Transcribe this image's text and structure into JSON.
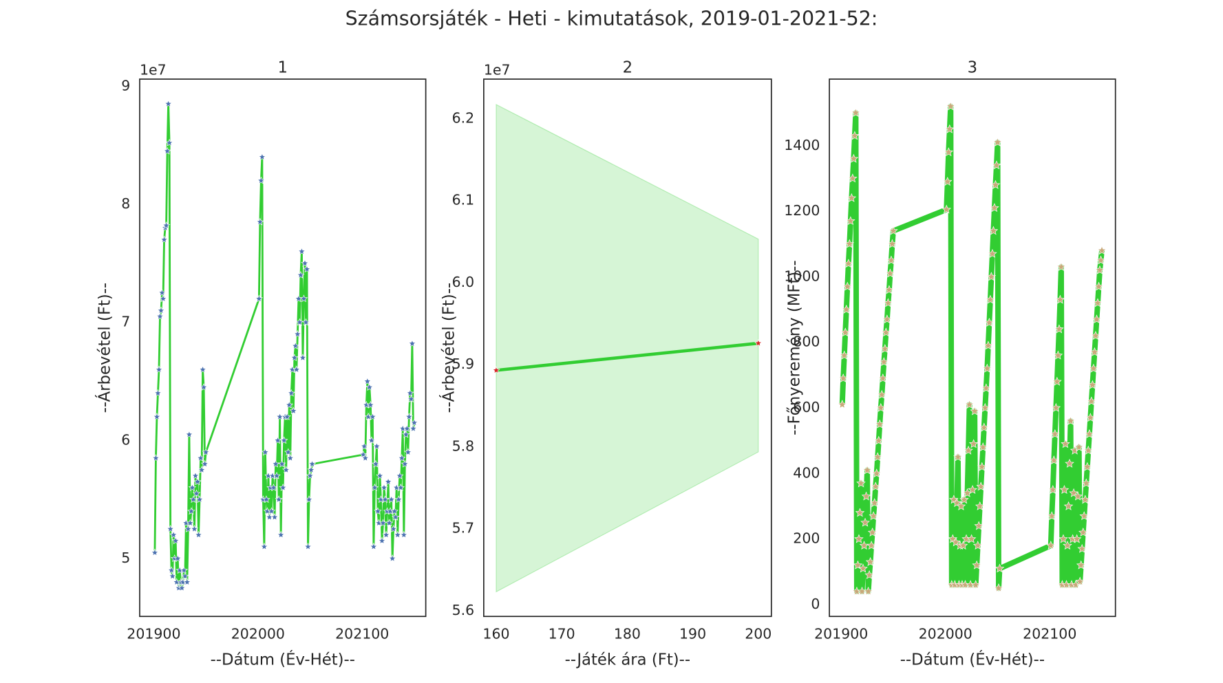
{
  "title": "Számsorsjáték - Heti - kimutatások, 2019-01-2021-52:",
  "chart_data": [
    {
      "type": "line",
      "title": "1",
      "xlabel": "--Dátum (Év-Hét)--",
      "ylabel": "--Árbevétel (Ft)--",
      "y_offset_label": "1e7",
      "line_color": "#32cd32",
      "marker_color": "#4c72b0",
      "xlim": [
        201886.5,
        202161
      ],
      "ylim": [
        45100000,
        90600000
      ],
      "xticks": [
        201900,
        202000,
        202100
      ],
      "yticks": [
        {
          "value": 50000000,
          "label": "5"
        },
        {
          "value": 60000000,
          "label": "6"
        },
        {
          "value": 70000000,
          "label": "7"
        },
        {
          "value": 80000000,
          "label": "8"
        },
        {
          "value": 90000000,
          "label": "9"
        }
      ],
      "x": [
        201901,
        201902,
        201903,
        201904,
        201905,
        201906,
        201907,
        201908,
        201909,
        201910,
        201911,
        201912,
        201913,
        201914,
        201915,
        201916,
        201917,
        201918,
        201919,
        201920,
        201921,
        201922,
        201923,
        201924,
        201925,
        201926,
        201927,
        201928,
        201929,
        201930,
        201931,
        201932,
        201933,
        201934,
        201935,
        201936,
        201937,
        201938,
        201939,
        201940,
        201941,
        201942,
        201943,
        201944,
        201945,
        201946,
        201947,
        201948,
        201949,
        201950,
        202001,
        202002,
        202003,
        202004,
        202005,
        202006,
        202007,
        202008,
        202009,
        202010,
        202011,
        202012,
        202013,
        202014,
        202015,
        202016,
        202017,
        202018,
        202019,
        202020,
        202021,
        202022,
        202023,
        202024,
        202025,
        202026,
        202027,
        202028,
        202029,
        202030,
        202031,
        202032,
        202033,
        202034,
        202035,
        202036,
        202037,
        202038,
        202039,
        202040,
        202041,
        202042,
        202043,
        202044,
        202045,
        202046,
        202047,
        202048,
        202049,
        202050,
        202051,
        202052,
        202101,
        202102,
        202103,
        202104,
        202105,
        202106,
        202107,
        202108,
        202109,
        202110,
        202111,
        202112,
        202113,
        202114,
        202115,
        202116,
        202117,
        202118,
        202119,
        202120,
        202121,
        202122,
        202123,
        202124,
        202125,
        202126,
        202127,
        202128,
        202129,
        202130,
        202131,
        202132,
        202133,
        202134,
        202135,
        202136,
        202137,
        202138,
        202139,
        202140,
        202141,
        202142,
        202143,
        202144,
        202145,
        202146,
        202147,
        202148,
        202149,
        202150
      ],
      "values": [
        50500000,
        58500000,
        62000000,
        64000000,
        66000000,
        70500000,
        71000000,
        72500000,
        72000000,
        77000000,
        78000000,
        78200000,
        84500000,
        88500000,
        85200000,
        52500000,
        49000000,
        48500000,
        52000000,
        50000000,
        51500000,
        48000000,
        50000000,
        47500000,
        49000000,
        48000000,
        47500000,
        48000000,
        49000000,
        48500000,
        53000000,
        48000000,
        52500000,
        60500000,
        53000000,
        54000000,
        56000000,
        55000000,
        52500000,
        57000000,
        55500000,
        56500000,
        52000000,
        55000000,
        58500000,
        57500000,
        66000000,
        64500000,
        58000000,
        59000000,
        72000000,
        78500000,
        82000000,
        84000000,
        55000000,
        51000000,
        59000000,
        55000000,
        54000000,
        57000000,
        53500000,
        56000000,
        54000000,
        57000000,
        56000000,
        53500000,
        58000000,
        57000000,
        60000000,
        55000000,
        62000000,
        52000000,
        58000000,
        56000000,
        60000000,
        62000000,
        57500000,
        62000000,
        59000000,
        63000000,
        58500000,
        64000000,
        66000000,
        62500000,
        67000000,
        68000000,
        66000000,
        69000000,
        72000000,
        70000000,
        74000000,
        76000000,
        67000000,
        72000000,
        75000000,
        70000000,
        74500000,
        51000000,
        55000000,
        57000000,
        57500000,
        58000000,
        58800000,
        59500000,
        58500000,
        63000000,
        65000000,
        62000000,
        64500000,
        63000000,
        60000000,
        62000000,
        51000000,
        56000000,
        58000000,
        59500000,
        54000000,
        53000000,
        57000000,
        55000000,
        51500000,
        53000000,
        56000000,
        55000000,
        52000000,
        54000000,
        56500000,
        53000000,
        54000000,
        55000000,
        50000000,
        52500000,
        54000000,
        53500000,
        56000000,
        52000000,
        55000000,
        57000000,
        56000000,
        58500000,
        61000000,
        52000000,
        58000000,
        60500000,
        61000000,
        59000000,
        62000000,
        64000000,
        63500000,
        68200000,
        61000000,
        61500000
      ]
    },
    {
      "type": "line",
      "title": "2",
      "xlabel": "--Játék ára (Ft)--",
      "ylabel": "--Árbevétel (Ft)--",
      "y_offset_label": "1e7",
      "line_color": "#32cd32",
      "marker_color": "#d62728",
      "band_color": "#32cd32",
      "xlim": [
        158.1,
        202
      ],
      "ylim": [
        55930000,
        62480000
      ],
      "xticks": [
        160,
        170,
        180,
        190,
        200
      ],
      "yticks": [
        {
          "value": 56000000,
          "label": "5.6"
        },
        {
          "value": 57000000,
          "label": "5.7"
        },
        {
          "value": 58000000,
          "label": "5.8"
        },
        {
          "value": 59000000,
          "label": "5.9"
        },
        {
          "value": 60000000,
          "label": "6.0"
        },
        {
          "value": 61000000,
          "label": "6.1"
        },
        {
          "value": 62000000,
          "label": "6.2"
        }
      ],
      "x": [
        160,
        200
      ],
      "values": [
        58930000,
        59260000
      ],
      "band_lower": [
        56230000,
        57935000
      ],
      "band_upper": [
        62170000,
        60530000
      ]
    },
    {
      "type": "line",
      "title": "3",
      "xlabel": "--Dátum (Év-Hét)--",
      "ylabel": "--Főnyeremény (MFt)--",
      "line_color": "#32cd32",
      "marker_color": "#c8a97a",
      "xlim": [
        201888.7,
        202163
      ],
      "ylim": [
        -36,
        1603
      ],
      "xticks": [
        201900,
        202000,
        202100
      ],
      "yticks": [
        0,
        200,
        400,
        600,
        800,
        1000,
        1200,
        1400
      ],
      "x": [
        201901,
        201902,
        201903,
        201904,
        201905,
        201906,
        201907,
        201908,
        201909,
        201910,
        201911,
        201912,
        201913,
        201914,
        201915,
        201916,
        201917,
        201918,
        201919,
        201920,
        201921,
        201922,
        201923,
        201924,
        201925,
        201926,
        201927,
        201928,
        201929,
        201930,
        201931,
        201932,
        201933,
        201934,
        201935,
        201936,
        201937,
        201938,
        201939,
        201940,
        201941,
        201942,
        201943,
        201944,
        201945,
        201946,
        201947,
        201948,
        201949,
        201950,
        202001,
        202002,
        202003,
        202004,
        202005,
        202006,
        202007,
        202008,
        202009,
        202010,
        202011,
        202012,
        202013,
        202014,
        202015,
        202016,
        202017,
        202018,
        202019,
        202020,
        202021,
        202022,
        202023,
        202024,
        202025,
        202026,
        202027,
        202028,
        202029,
        202030,
        202031,
        202032,
        202033,
        202034,
        202035,
        202036,
        202037,
        202038,
        202039,
        202040,
        202041,
        202042,
        202043,
        202044,
        202045,
        202046,
        202047,
        202048,
        202049,
        202050,
        202051,
        202052,
        202101,
        202102,
        202103,
        202104,
        202105,
        202106,
        202107,
        202108,
        202109,
        202110,
        202111,
        202112,
        202113,
        202114,
        202115,
        202116,
        202117,
        202118,
        202119,
        202120,
        202121,
        202122,
        202123,
        202124,
        202125,
        202126,
        202127,
        202128,
        202129,
        202130,
        202131,
        202132,
        202133,
        202134,
        202135,
        202136,
        202137,
        202138,
        202139,
        202140,
        202141,
        202142,
        202143,
        202144,
        202145,
        202146,
        202147,
        202148,
        202149,
        202150
      ],
      "values": [
        610,
        690,
        760,
        830,
        900,
        970,
        1040,
        1100,
        1170,
        1240,
        1300,
        1360,
        1430,
        1500,
        40,
        120,
        200,
        280,
        370,
        40,
        110,
        180,
        250,
        330,
        410,
        40,
        90,
        130,
        180,
        220,
        270,
        310,
        360,
        400,
        450,
        500,
        550,
        600,
        640,
        690,
        740,
        780,
        830,
        870,
        920,
        960,
        1010,
        1050,
        1100,
        1140,
        1205,
        1290,
        1380,
        1450,
        1520,
        60,
        200,
        320,
        60,
        190,
        310,
        450,
        60,
        180,
        300,
        60,
        180,
        320,
        60,
        200,
        340,
        470,
        610,
        60,
        200,
        350,
        490,
        590,
        60,
        120,
        180,
        240,
        300,
        360,
        420,
        480,
        540,
        600,
        660,
        720,
        790,
        860,
        930,
        1000,
        1070,
        1140,
        1210,
        1280,
        1340,
        1410,
        50,
        110,
        180,
        270,
        350,
        440,
        520,
        600,
        680,
        760,
        840,
        930,
        1030,
        60,
        200,
        350,
        490,
        60,
        180,
        300,
        430,
        560,
        60,
        200,
        340,
        470,
        60,
        200,
        330,
        480,
        70,
        120,
        170,
        220,
        270,
        320,
        370,
        420,
        470,
        520,
        570,
        620,
        670,
        720,
        770,
        820,
        870,
        920,
        970,
        1020,
        1050,
        1080
      ]
    }
  ]
}
